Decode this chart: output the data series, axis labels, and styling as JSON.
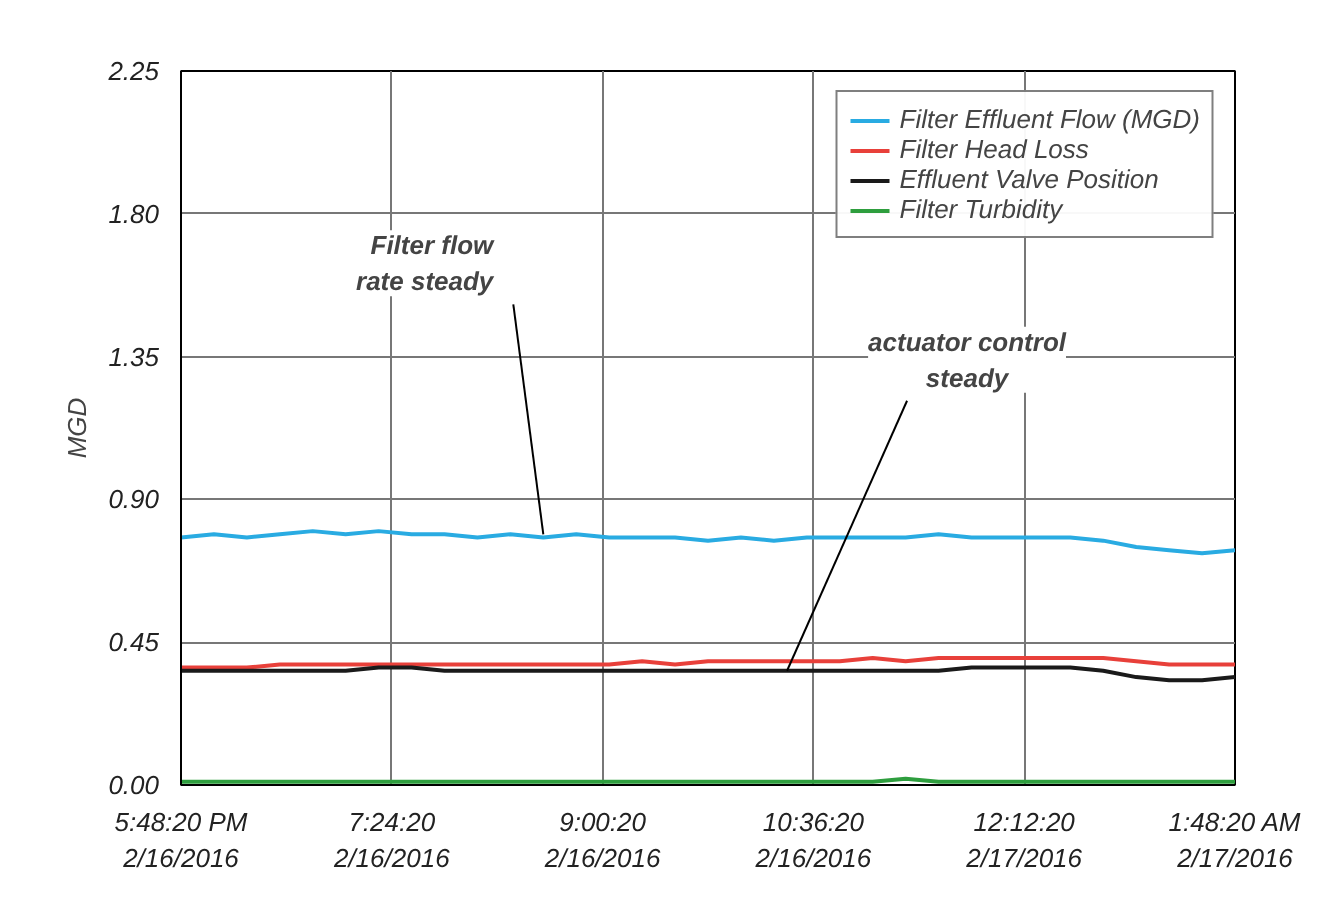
{
  "chart_data": {
    "type": "line",
    "ylabel": "MGD",
    "x": [
      "2016-02-16T17:48:20",
      "2016-02-16T18:03:20",
      "2016-02-16T18:18:20",
      "2016-02-16T18:33:20",
      "2016-02-16T18:48:20",
      "2016-02-16T19:03:20",
      "2016-02-16T19:18:20",
      "2016-02-16T19:33:20",
      "2016-02-16T19:48:20",
      "2016-02-16T20:03:20",
      "2016-02-16T20:18:20",
      "2016-02-16T20:33:20",
      "2016-02-16T20:48:20",
      "2016-02-16T21:03:20",
      "2016-02-16T21:18:20",
      "2016-02-16T21:33:20",
      "2016-02-16T21:48:20",
      "2016-02-16T22:03:20",
      "2016-02-16T22:18:20",
      "2016-02-16T22:33:20",
      "2016-02-16T22:48:20",
      "2016-02-16T23:03:20",
      "2016-02-16T23:18:20",
      "2016-02-16T23:33:20",
      "2016-02-16T23:48:20",
      "2016-02-17T00:03:20",
      "2016-02-17T00:18:20",
      "2016-02-17T00:33:20",
      "2016-02-17T00:48:20",
      "2016-02-17T01:03:20",
      "2016-02-17T01:18:20",
      "2016-02-17T01:33:20",
      "2016-02-17T01:48:20"
    ],
    "series": [
      {
        "name": "Filter Effluent Flow (MGD)",
        "color": "#29abe2",
        "values": [
          0.78,
          0.79,
          0.78,
          0.79,
          0.8,
          0.79,
          0.8,
          0.79,
          0.79,
          0.78,
          0.79,
          0.78,
          0.79,
          0.78,
          0.78,
          0.78,
          0.77,
          0.78,
          0.77,
          0.78,
          0.78,
          0.78,
          0.78,
          0.79,
          0.78,
          0.78,
          0.78,
          0.78,
          0.77,
          0.75,
          0.74,
          0.73,
          0.74
        ]
      },
      {
        "name": "Filter Head Loss",
        "color": "#e8403a",
        "values": [
          0.37,
          0.37,
          0.37,
          0.38,
          0.38,
          0.38,
          0.38,
          0.38,
          0.38,
          0.38,
          0.38,
          0.38,
          0.38,
          0.38,
          0.39,
          0.38,
          0.39,
          0.39,
          0.39,
          0.39,
          0.39,
          0.4,
          0.39,
          0.4,
          0.4,
          0.4,
          0.4,
          0.4,
          0.4,
          0.39,
          0.38,
          0.38,
          0.38
        ]
      },
      {
        "name": "Effluent Valve Position",
        "color": "#1a1a1a",
        "values": [
          0.36,
          0.36,
          0.36,
          0.36,
          0.36,
          0.36,
          0.37,
          0.37,
          0.36,
          0.36,
          0.36,
          0.36,
          0.36,
          0.36,
          0.36,
          0.36,
          0.36,
          0.36,
          0.36,
          0.36,
          0.36,
          0.36,
          0.36,
          0.36,
          0.37,
          0.37,
          0.37,
          0.37,
          0.36,
          0.34,
          0.33,
          0.33,
          0.34
        ]
      },
      {
        "name": "Filter Turbidity",
        "color": "#2e9e3e",
        "values": [
          0.01,
          0.01,
          0.01,
          0.01,
          0.01,
          0.01,
          0.01,
          0.01,
          0.01,
          0.01,
          0.01,
          0.01,
          0.01,
          0.01,
          0.01,
          0.01,
          0.01,
          0.01,
          0.01,
          0.01,
          0.01,
          0.01,
          0.02,
          0.01,
          0.01,
          0.01,
          0.01,
          0.01,
          0.01,
          0.01,
          0.01,
          0.01,
          0.01
        ]
      }
    ],
    "xlim": [
      "2016-02-16T17:48:20",
      "2016-02-17T01:48:20"
    ],
    "xticks": [
      {
        "value": "2016-02-16T17:48:20",
        "label": "5:48:20 PM\n2/16/2016"
      },
      {
        "value": "2016-02-16T19:24:20",
        "label": "7:24:20\n2/16/2016"
      },
      {
        "value": "2016-02-16T21:00:20",
        "label": "9:00:20\n2/16/2016"
      },
      {
        "value": "2016-02-16T22:36:20",
        "label": "10:36:20\n2/16/2016"
      },
      {
        "value": "2016-02-17T00:12:20",
        "label": "12:12:20\n2/17/2016"
      },
      {
        "value": "2016-02-17T01:48:20",
        "label": "1:48:20 AM\n2/17/2016"
      }
    ],
    "ylim": [
      0,
      2.25
    ],
    "yticks": [
      {
        "value": 0,
        "label": "0.00"
      },
      {
        "value": 0.45,
        "label": "0.45"
      },
      {
        "value": 0.9,
        "label": "0.90"
      },
      {
        "value": 1.35,
        "label": "1.35"
      },
      {
        "value": 1.8,
        "label": "1.80"
      },
      {
        "value": 2.25,
        "label": "2.25"
      }
    ],
    "annotations": [
      {
        "text": "Filter flow rate steady",
        "x": "2016-02-16T20:33:20",
        "y": 0.79
      },
      {
        "text": "actuator control steady",
        "x": "2016-02-16T22:24:20",
        "y": 0.36
      }
    ],
    "grid": true,
    "legend": "top right",
    "line_style": "solid"
  }
}
